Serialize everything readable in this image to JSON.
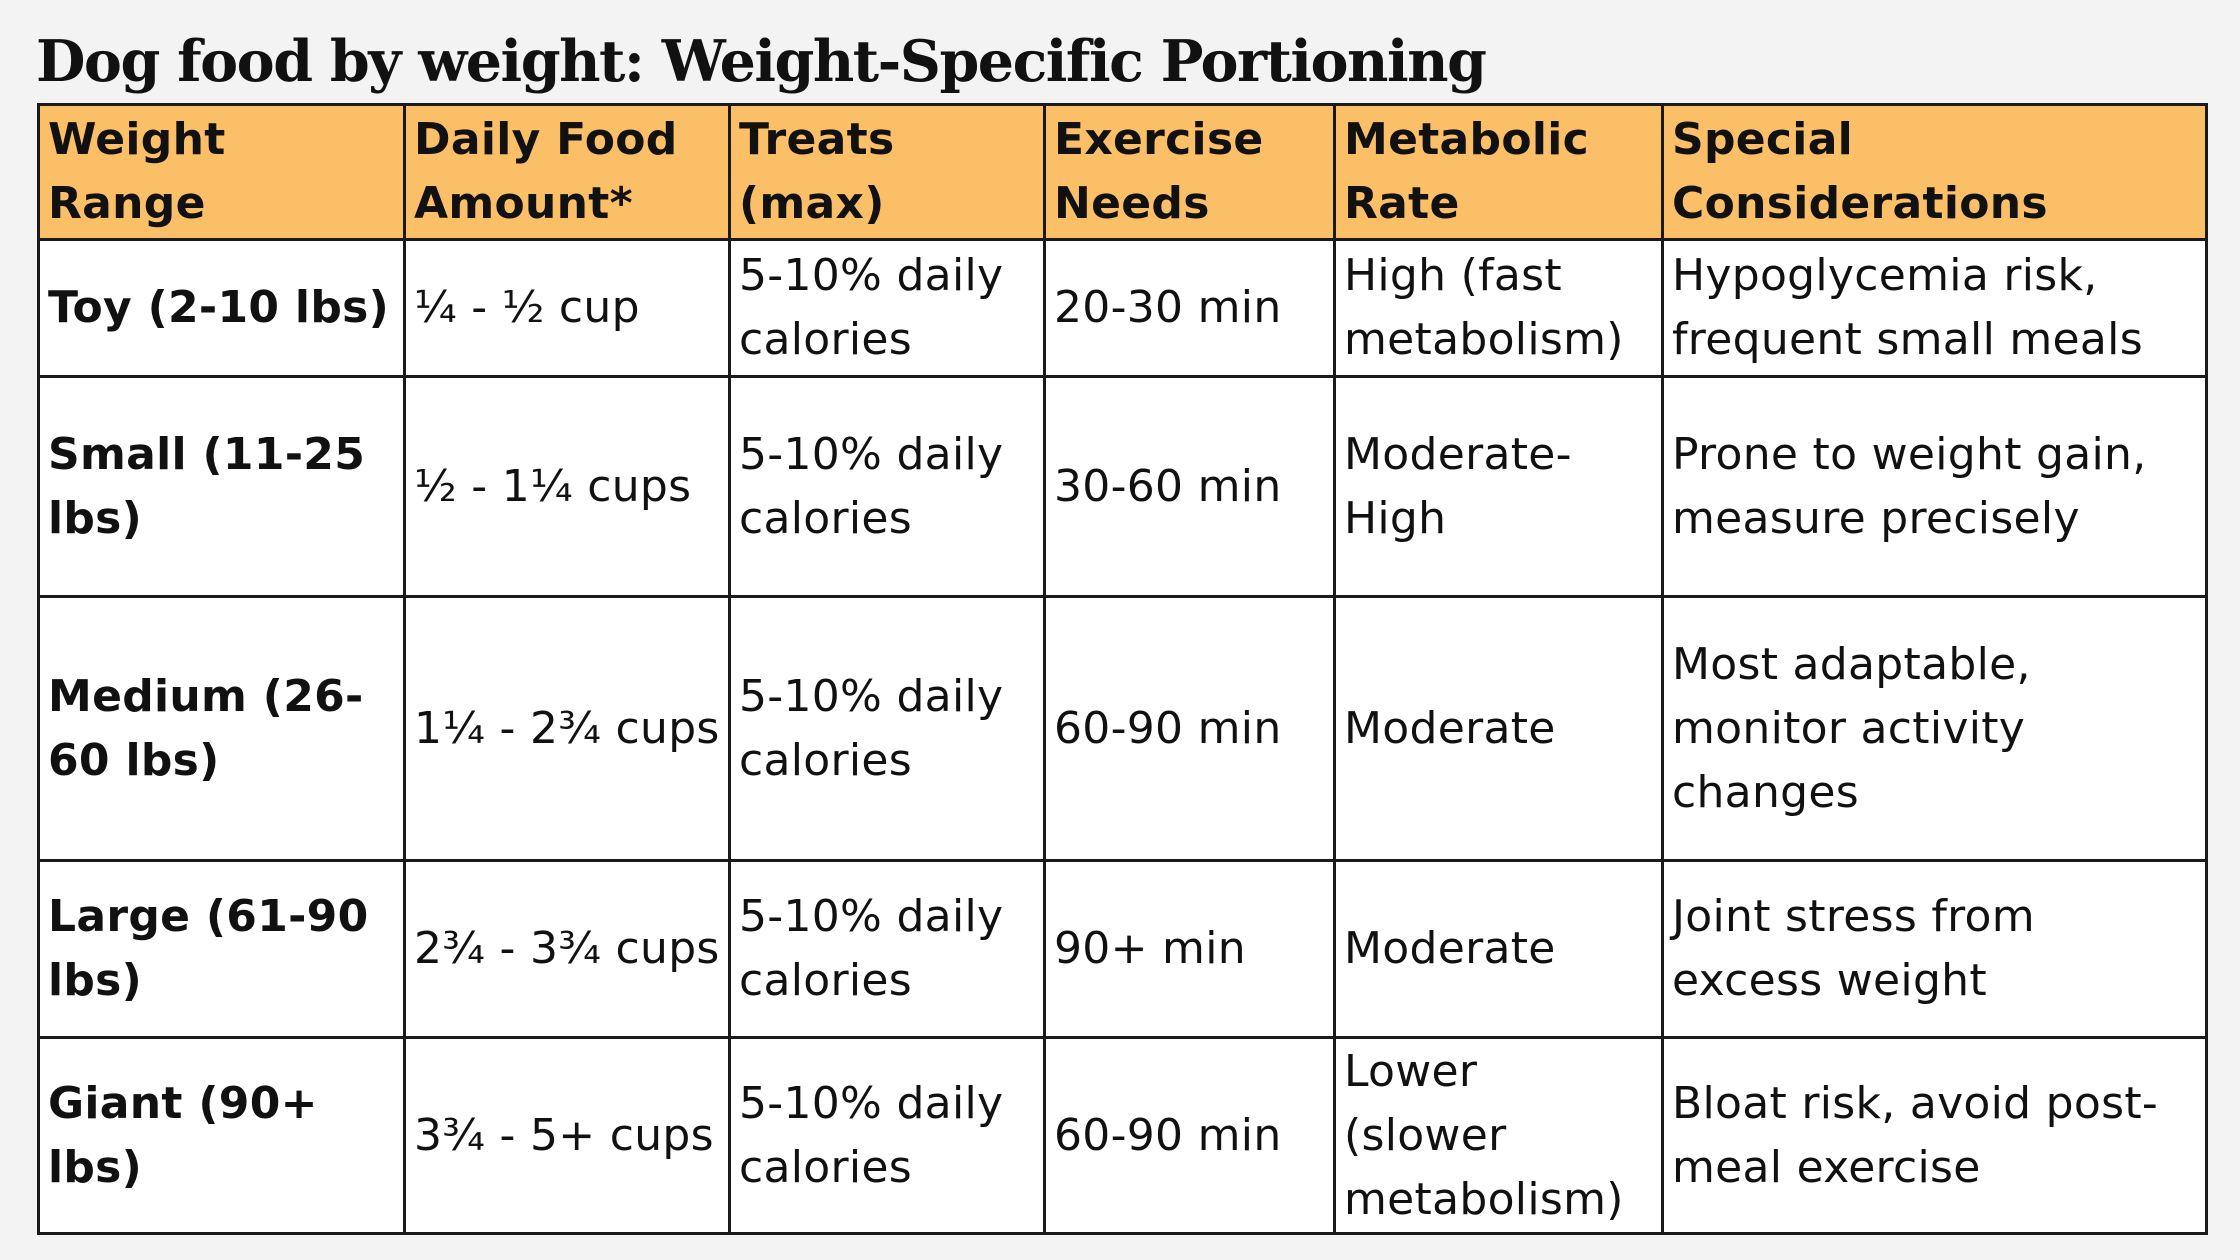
{
  "title": "Dog food by weight: Weight-Specific Portioning",
  "table": {
    "headers": [
      "Weight Range",
      "Daily Food Amount*",
      "Treats (max)",
      "Exercise Needs",
      "Metabolic Rate",
      "Special Considerations"
    ],
    "rows": [
      {
        "weight_range": "Toy (2-10 lbs)",
        "daily_food_amount": "¼ - ½ cup",
        "treats_max": "5-10% daily calories",
        "exercise_needs": "20-30 min",
        "metabolic_rate": "High (fast metabolism)",
        "special_considerations": "Hypoglycemia risk, frequent small meals"
      },
      {
        "weight_range": "Small (11-25 lbs)",
        "daily_food_amount": "½ - 1¼ cups",
        "treats_max": "5-10% daily calories",
        "exercise_needs": "30-60 min",
        "metabolic_rate": "Moderate-High",
        "special_considerations": "Prone to weight gain, measure precisely"
      },
      {
        "weight_range": "Medium (26-60 lbs)",
        "daily_food_amount": "1¼ - 2¾ cups",
        "treats_max": "5-10% daily calories",
        "exercise_needs": "60-90 min",
        "metabolic_rate": "Moderate",
        "special_considerations": "Most adaptable, monitor activity changes"
      },
      {
        "weight_range": "Large (61-90 lbs)",
        "daily_food_amount": "2¾ - 3¾ cups",
        "treats_max": "5-10% daily calories",
        "exercise_needs": "90+ min",
        "metabolic_rate": "Moderate",
        "special_considerations": "Joint stress from excess weight"
      },
      {
        "weight_range": "Giant (90+ lbs)",
        "daily_food_amount": "3¾ - 5+ cups",
        "treats_max": "5-10% daily calories",
        "exercise_needs": "60-90 min",
        "metabolic_rate": "Lower (slower metabolism)",
        "special_considerations": "Bloat risk, avoid post-meal exercise"
      }
    ]
  },
  "colors": {
    "header_background": "#fbbf68",
    "border": "#1a1a1a",
    "page_background": "#f3f3f3"
  }
}
